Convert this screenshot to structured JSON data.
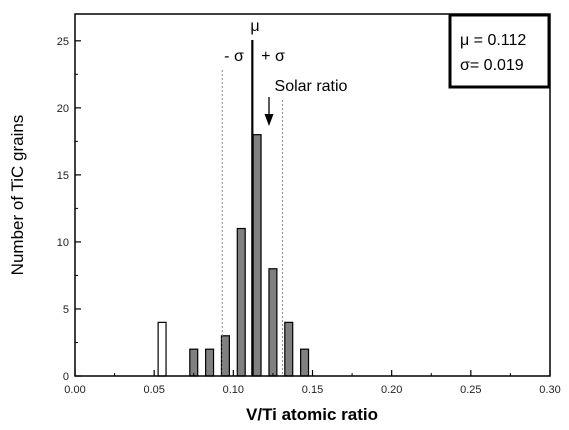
{
  "chart_data": {
    "type": "bar",
    "xlabel": "V/Ti atomic ratio",
    "ylabel": "Number of TiC grains",
    "xlim": [
      0.0,
      0.3
    ],
    "ylim": [
      0,
      27
    ],
    "x_ticks": [
      "0.00",
      "0.05",
      "0.10",
      "0.15",
      "0.20",
      "0.25",
      "0.30"
    ],
    "x_tick_values": [
      0.0,
      0.05,
      0.1,
      0.15,
      0.2,
      0.25,
      0.3
    ],
    "y_ticks": [
      "0",
      "5",
      "10",
      "15",
      "20",
      "25"
    ],
    "y_tick_values": [
      0,
      5,
      10,
      15,
      20,
      25
    ],
    "bin_width": 0.005,
    "bars": [
      {
        "x": 0.055,
        "value": 4,
        "fill": "#ffffff"
      },
      {
        "x": 0.075,
        "value": 2,
        "fill": "#808080"
      },
      {
        "x": 0.085,
        "value": 2,
        "fill": "#808080"
      },
      {
        "x": 0.095,
        "value": 3,
        "fill": "#808080"
      },
      {
        "x": 0.105,
        "value": 11,
        "fill": "#808080"
      },
      {
        "x": 0.115,
        "value": 18,
        "fill": "#808080"
      },
      {
        "x": 0.125,
        "value": 8,
        "fill": "#808080"
      },
      {
        "x": 0.135,
        "value": 4,
        "fill": "#808080"
      },
      {
        "x": 0.145,
        "value": 2,
        "fill": "#808080"
      }
    ],
    "mean_line": {
      "x": 0.112,
      "label": "μ"
    },
    "minus_sigma_line": {
      "x": 0.093,
      "label": "- σ"
    },
    "plus_sigma_line": {
      "x": 0.131,
      "label": "+ σ"
    },
    "solar_ratio": {
      "x": 0.12,
      "label": "Solar ratio"
    },
    "legend_box": {
      "line1": "μ = 0.112",
      "line2": "σ= 0.019"
    }
  }
}
